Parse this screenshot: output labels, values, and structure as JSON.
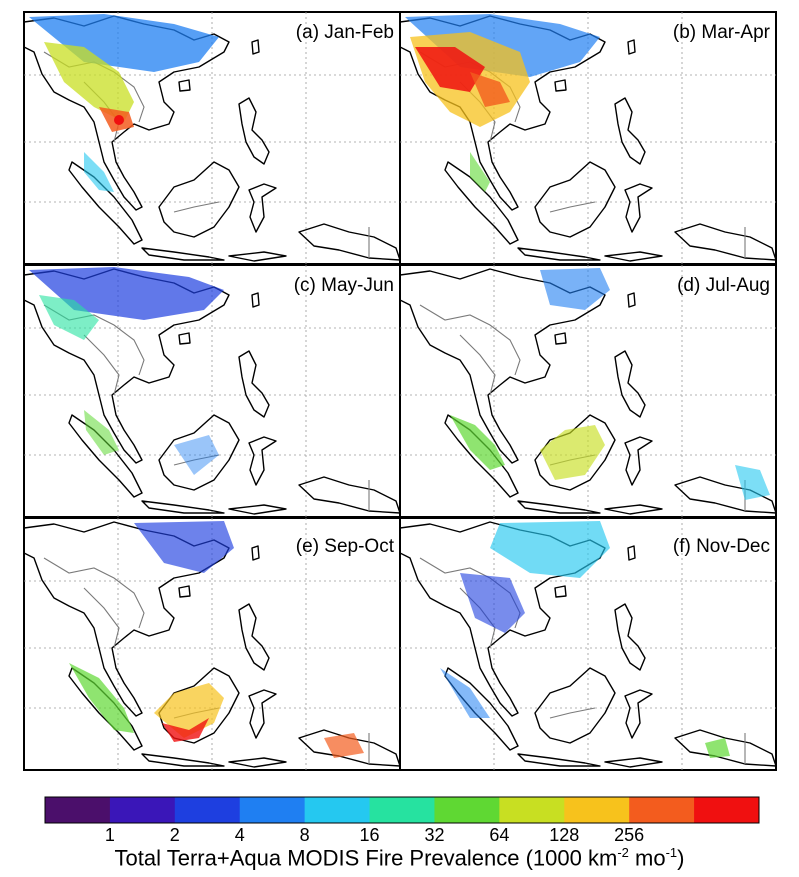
{
  "panels": [
    {
      "label": "(a) Jan-Feb"
    },
    {
      "label": "(b) Mar-Apr"
    },
    {
      "label": "(c) May-Jun"
    },
    {
      "label": "(d) Jul-Aug"
    },
    {
      "label": "(e) Sep-Oct"
    },
    {
      "label": "(f) Nov-Dec"
    }
  ],
  "colorbar": {
    "colors": [
      "#4b0f6b",
      "#3a16b8",
      "#1e3fe0",
      "#1f7ff2",
      "#25c8f0",
      "#26e2a0",
      "#5fd833",
      "#c8df22",
      "#f7c21c",
      "#f35c1e",
      "#f01010"
    ],
    "ticks": [
      "1",
      "2",
      "4",
      "8",
      "16",
      "32",
      "64",
      "128",
      "256"
    ],
    "title_main": "Total Terra+Aqua MODIS Fire Prevalence (1000 km",
    "title_sup1": "-2",
    "title_mid": " mo",
    "title_sup2": "-1",
    "title_end": ")"
  }
}
